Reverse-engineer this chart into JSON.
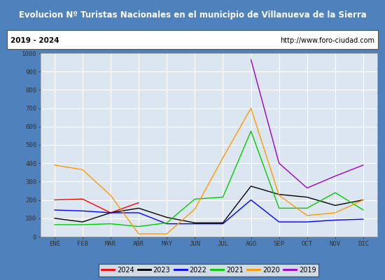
{
  "title": "Evolucion Nº Turistas Nacionales en el municipio de Villanueva de la Sierra",
  "subtitle_left": "2019 - 2024",
  "subtitle_right": "http://www.foro-ciudad.com",
  "x_labels": [
    "ENE",
    "FEB",
    "MAR",
    "ABR",
    "MAY",
    "JUN",
    "JUL",
    "AGO",
    "SEP",
    "OCT",
    "NOV",
    "DIC"
  ],
  "ylim": [
    0,
    1000
  ],
  "yticks": [
    0,
    100,
    200,
    300,
    400,
    500,
    600,
    700,
    800,
    900,
    1000
  ],
  "series": {
    "2024": {
      "color": "#ff0000",
      "data": [
        200,
        205,
        130,
        185,
        null,
        null,
        null,
        null,
        null,
        null,
        null,
        null
      ]
    },
    "2023": {
      "color": "#000000",
      "data": [
        100,
        80,
        130,
        155,
        105,
        75,
        75,
        275,
        230,
        215,
        170,
        200
      ]
    },
    "2022": {
      "color": "#0000ff",
      "data": [
        145,
        140,
        130,
        130,
        70,
        70,
        70,
        200,
        80,
        80,
        90,
        95
      ]
    },
    "2021": {
      "color": "#00cc00",
      "data": [
        65,
        65,
        70,
        55,
        75,
        205,
        215,
        575,
        155,
        155,
        240,
        145
      ]
    },
    "2020": {
      "color": "#ff9900",
      "data": [
        390,
        365,
        225,
        15,
        15,
        150,
        430,
        700,
        225,
        115,
        130,
        200
      ]
    },
    "2019": {
      "color": "#9900cc",
      "data": [
        null,
        null,
        null,
        null,
        null,
        null,
        null,
        965,
        400,
        265,
        330,
        390
      ]
    }
  },
  "legend_order": [
    "2024",
    "2023",
    "2022",
    "2021",
    "2020",
    "2019"
  ],
  "title_bg": "#4f81bd",
  "title_color": "#ffffff",
  "subtitle_bg": "#ffffff",
  "plot_bg": "#dce6f1",
  "grid_color": "#ffffff",
  "outer_bg": "#4f81bd",
  "legend_bg": "#f2f2f2"
}
